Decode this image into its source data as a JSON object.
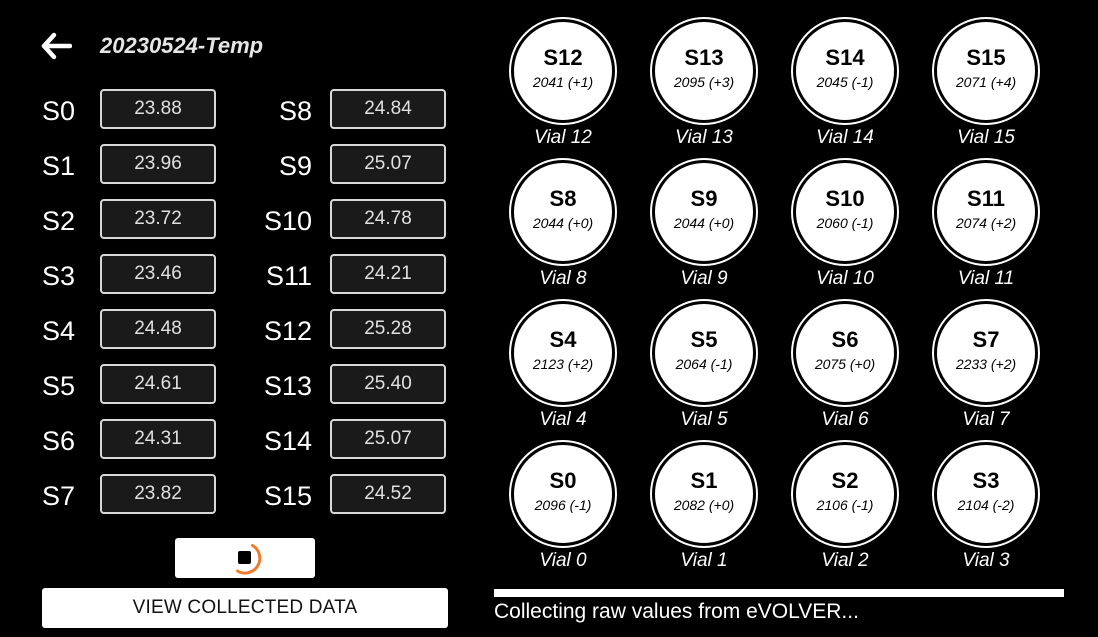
{
  "header": {
    "back_icon": "arrow-left-icon",
    "title": "20230524-Temp"
  },
  "sensors_left": [
    {
      "label": "S0",
      "value": "23.88"
    },
    {
      "label": "S1",
      "value": "23.96"
    },
    {
      "label": "S2",
      "value": "23.72"
    },
    {
      "label": "S3",
      "value": "23.46"
    },
    {
      "label": "S4",
      "value": "24.48"
    },
    {
      "label": "S5",
      "value": "24.61"
    },
    {
      "label": "S6",
      "value": "24.31"
    },
    {
      "label": "S7",
      "value": "23.82"
    }
  ],
  "sensors_right": [
    {
      "label": "S8",
      "value": "24.84"
    },
    {
      "label": "S9",
      "value": "25.07"
    },
    {
      "label": "S10",
      "value": "24.78"
    },
    {
      "label": "S11",
      "value": "24.21"
    },
    {
      "label": "S12",
      "value": "25.28"
    },
    {
      "label": "S13",
      "value": "25.40"
    },
    {
      "label": "S14",
      "value": "25.07"
    },
    {
      "label": "S15",
      "value": "24.52"
    }
  ],
  "controls": {
    "stop_icon": "stop-spinner-icon",
    "view_data_label": "VIEW COLLECTED DATA"
  },
  "vials": [
    {
      "sensor": "S12",
      "reading": "2041 (+1)",
      "name": "Vial 12"
    },
    {
      "sensor": "S13",
      "reading": "2095 (+3)",
      "name": "Vial 13"
    },
    {
      "sensor": "S14",
      "reading": "2045 (-1)",
      "name": "Vial 14"
    },
    {
      "sensor": "S15",
      "reading": "2071 (+4)",
      "name": "Vial 15"
    },
    {
      "sensor": "S8",
      "reading": "2044 (+0)",
      "name": "Vial 8"
    },
    {
      "sensor": "S9",
      "reading": "2044 (+0)",
      "name": "Vial 9"
    },
    {
      "sensor": "S10",
      "reading": "2060 (-1)",
      "name": "Vial 10"
    },
    {
      "sensor": "S11",
      "reading": "2074 (+2)",
      "name": "Vial 11"
    },
    {
      "sensor": "S4",
      "reading": "2123 (+2)",
      "name": "Vial 4"
    },
    {
      "sensor": "S5",
      "reading": "2064 (-1)",
      "name": "Vial 5"
    },
    {
      "sensor": "S6",
      "reading": "2075 (+0)",
      "name": "Vial 6"
    },
    {
      "sensor": "S7",
      "reading": "2233 (+2)",
      "name": "Vial 7"
    },
    {
      "sensor": "S0",
      "reading": "2096 (-1)",
      "name": "Vial 0"
    },
    {
      "sensor": "S1",
      "reading": "2082 (+0)",
      "name": "Vial 1"
    },
    {
      "sensor": "S2",
      "reading": "2106 (-1)",
      "name": "Vial 2"
    },
    {
      "sensor": "S3",
      "reading": "2104 (-2)",
      "name": "Vial 3"
    }
  ],
  "progress": {
    "fraction": 1.0
  },
  "status_text": "Collecting raw values from eVOLVER...",
  "colors": {
    "background": "#000000",
    "accent_spinner": "#f07a2a",
    "vial_fill": "#ffffff"
  }
}
